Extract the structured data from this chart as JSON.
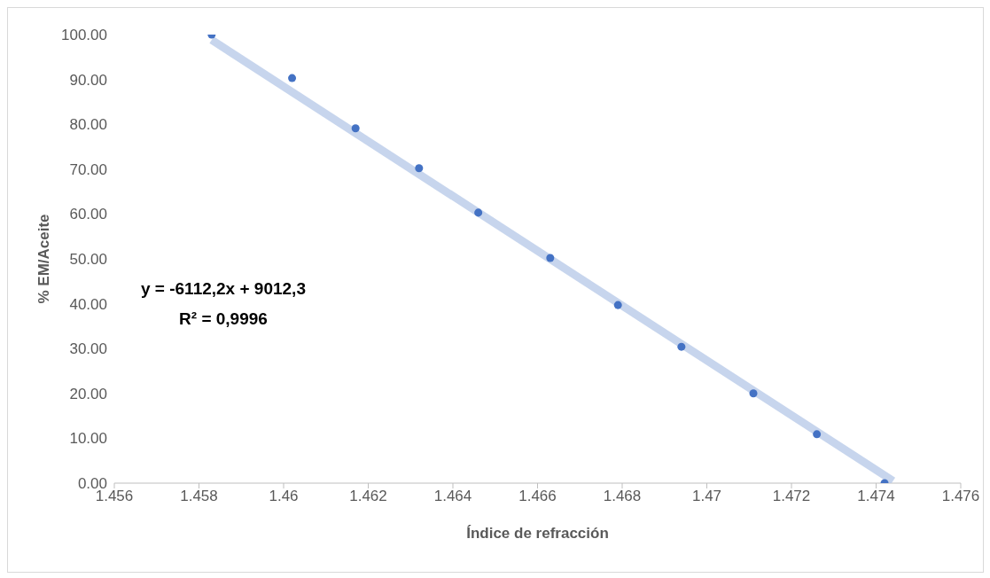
{
  "chart_data": {
    "type": "scatter",
    "xlabel": "Índice de refracción",
    "ylabel": "% EM/Aceite",
    "xlim": [
      1.456,
      1.476
    ],
    "xticks": [
      1.456,
      1.458,
      1.46,
      1.462,
      1.464,
      1.466,
      1.468,
      1.47,
      1.472,
      1.474,
      1.476
    ],
    "ylim": [
      0,
      100
    ],
    "yticks": [
      {
        "value": 0,
        "label": "0.00"
      },
      {
        "value": 10,
        "label": "10.00"
      },
      {
        "value": 20,
        "label": "20.00"
      },
      {
        "value": 30,
        "label": "30.00"
      },
      {
        "value": 40,
        "label": "40.00"
      },
      {
        "value": 50,
        "label": "50.00"
      },
      {
        "value": 60,
        "label": "60.00"
      },
      {
        "value": 70,
        "label": "70.00"
      },
      {
        "value": 80,
        "label": "80.00"
      },
      {
        "value": 90,
        "label": "90.00"
      },
      {
        "value": 100,
        "label": "100.00"
      }
    ],
    "grid": false,
    "legend": false,
    "marker": "circle",
    "series": [
      {
        "type": "line",
        "marker": "none",
        "color": "#b4c7e7",
        "x": [
          1.4583,
          1.4744
        ],
        "values": [
          98.8,
          0.5
        ]
      },
      {
        "color": "#4472c4",
        "x": [
          1.4583,
          1.4602,
          1.4617,
          1.4632,
          1.4646,
          1.4663,
          1.4679,
          1.4694,
          1.4711,
          1.4726,
          1.4742
        ],
        "values": [
          100,
          90.3,
          79.1,
          70.2,
          60.3,
          50.2,
          39.7,
          30.4,
          20.0,
          10.9,
          0
        ]
      }
    ],
    "annotations": [
      "y = -6112,2x + 9012,3",
      "R² = 0,9996"
    ]
  }
}
